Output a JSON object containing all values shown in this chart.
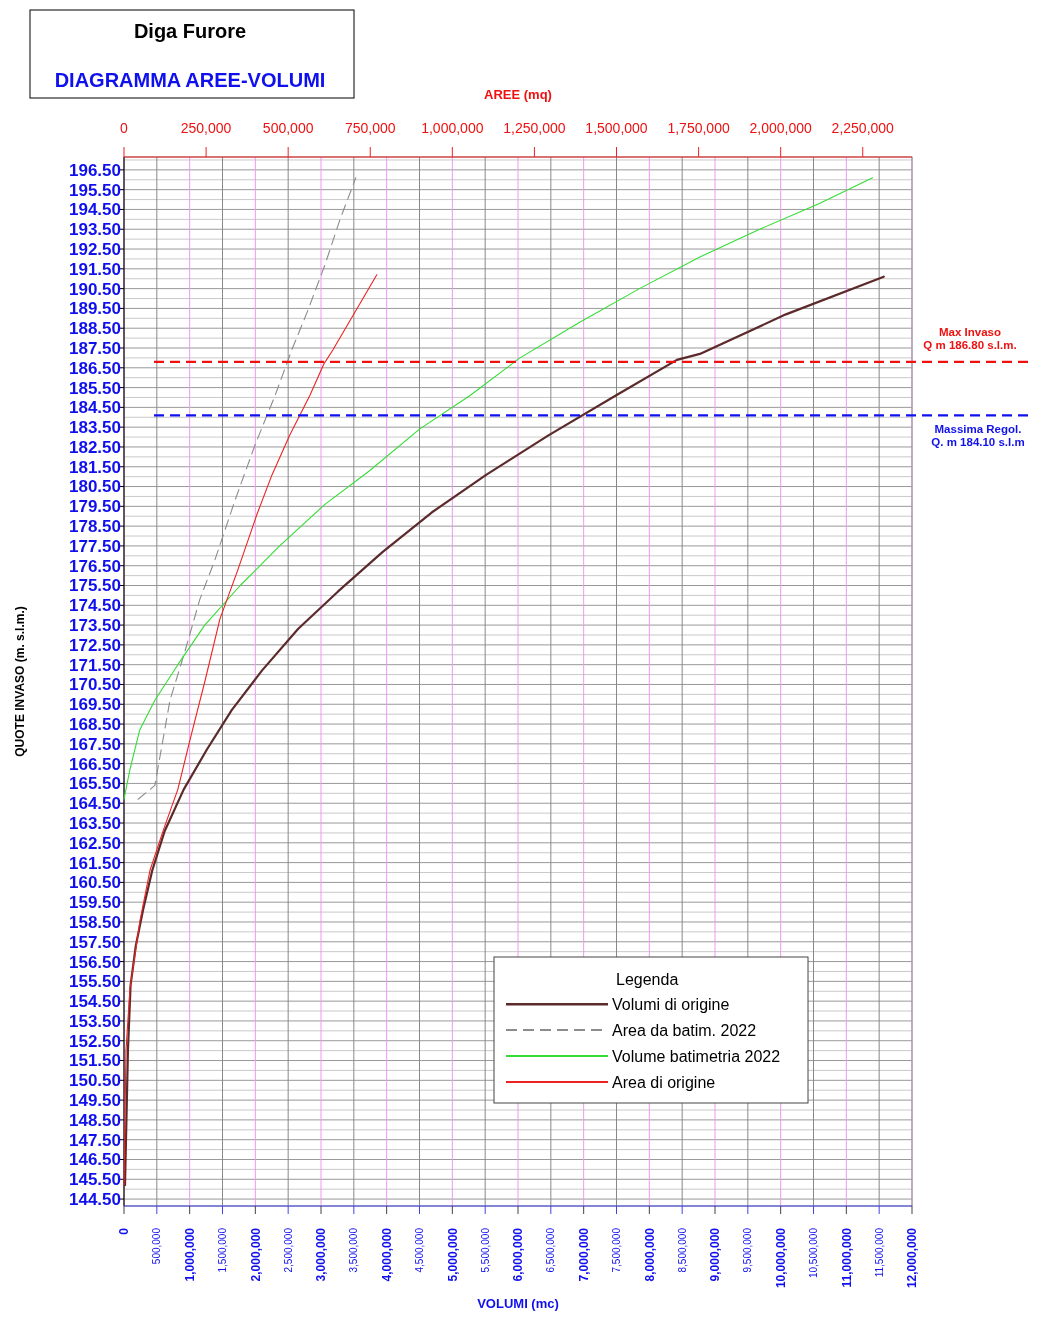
{
  "chart_data": {
    "type": "line",
    "title": "Diga Furore",
    "subtitle": "DIAGRAMMA AREE-VOLUMI",
    "xlabel": "VOLUMI (mc)",
    "x2label": "AREE (mq)",
    "ylabel": "QUOTE INVASO (m. s.l.m.)",
    "legend_title": "Legenda",
    "legend": "bottom right",
    "grid": true,
    "xlim": [
      0,
      12000000
    ],
    "x2lim": [
      0,
      2400000
    ],
    "ylim": [
      144.15,
      197.15
    ],
    "xticks": [
      0,
      {
        "value": 500000,
        "label": "500,000"
      },
      {
        "value": 1000000,
        "label": "1,000,000"
      },
      {
        "value": 1500000,
        "label": "1,500,000"
      },
      {
        "value": 2000000,
        "label": "2,000,000"
      },
      {
        "value": 2500000,
        "label": "2,500,000"
      },
      {
        "value": 3000000,
        "label": "3,000,000"
      },
      {
        "value": 3500000,
        "label": "3,500,000"
      },
      {
        "value": 4000000,
        "label": "4,000,000"
      },
      {
        "value": 4500000,
        "label": "4,500,000"
      },
      {
        "value": 5000000,
        "label": "5,000,000"
      },
      {
        "value": 5500000,
        "label": "5,500,000"
      },
      {
        "value": 6000000,
        "label": "6,000,000"
      },
      {
        "value": 6500000,
        "label": "6,500,000"
      },
      {
        "value": 7000000,
        "label": "7,000,000"
      },
      {
        "value": 7500000,
        "label": "7,500,000"
      },
      {
        "value": 8000000,
        "label": "8,000,000"
      },
      {
        "value": 8500000,
        "label": "8,500,000"
      },
      {
        "value": 9000000,
        "label": "9,000,000"
      },
      {
        "value": 9500000,
        "label": "9,500,000"
      },
      {
        "value": 10000000,
        "label": "10,000,000"
      },
      {
        "value": 10500000,
        "label": "10,500,000"
      },
      {
        "value": 11000000,
        "label": "11,000,000"
      },
      {
        "value": 11500000,
        "label": "11,500,000"
      },
      {
        "value": 12000000,
        "label": "12,000,000"
      }
    ],
    "x2ticks": [
      0,
      {
        "value": 250000,
        "label": "250,000"
      },
      {
        "value": 500000,
        "label": "500,000"
      },
      {
        "value": 750000,
        "label": "750,000"
      },
      {
        "value": 1000000,
        "label": "1,000,000"
      },
      {
        "value": 1250000,
        "label": "1,250,000"
      },
      {
        "value": 1500000,
        "label": "1,500,000"
      },
      {
        "value": 1750000,
        "label": "1,750,000"
      },
      {
        "value": 2000000,
        "label": "2,000,000"
      },
      {
        "value": 2250000,
        "label": "2,250,000"
      }
    ],
    "yticks": [
      {
        "value": 144.5,
        "label": "144.50"
      },
      {
        "value": 145.5,
        "label": "145.50"
      },
      {
        "value": 146.5,
        "label": "146.50"
      },
      {
        "value": 147.5,
        "label": "147.50"
      },
      {
        "value": 148.5,
        "label": "148.50"
      },
      {
        "value": 149.5,
        "label": "149.50"
      },
      {
        "value": 150.5,
        "label": "150.50"
      },
      {
        "value": 151.5,
        "label": "151.50"
      },
      {
        "value": 152.5,
        "label": "152.50"
      },
      {
        "value": 153.5,
        "label": "153.50"
      },
      {
        "value": 154.5,
        "label": "154.50"
      },
      {
        "value": 155.5,
        "label": "155.50"
      },
      {
        "value": 156.5,
        "label": "156.50"
      },
      {
        "value": 157.5,
        "label": "157.50"
      },
      {
        "value": 158.5,
        "label": "158.50"
      },
      {
        "value": 159.5,
        "label": "159.50"
      },
      {
        "value": 160.5,
        "label": "160.50"
      },
      {
        "value": 161.5,
        "label": "161.50"
      },
      {
        "value": 162.5,
        "label": "162.50"
      },
      {
        "value": 163.5,
        "label": "163.50"
      },
      {
        "value": 164.5,
        "label": "164.50"
      },
      {
        "value": 165.5,
        "label": "165.50"
      },
      {
        "value": 166.5,
        "label": "166.50"
      },
      {
        "value": 167.5,
        "label": "167.50"
      },
      {
        "value": 168.5,
        "label": "168.50"
      },
      {
        "value": 169.5,
        "label": "169.50"
      },
      {
        "value": 170.5,
        "label": "170.50"
      },
      {
        "value": 171.5,
        "label": "171.50"
      },
      {
        "value": 172.5,
        "label": "172.50"
      },
      {
        "value": 173.5,
        "label": "173.50"
      },
      {
        "value": 174.5,
        "label": "174.50"
      },
      {
        "value": 175.5,
        "label": "175.50"
      },
      {
        "value": 176.5,
        "label": "176.50"
      },
      {
        "value": 177.5,
        "label": "177.50"
      },
      {
        "value": 178.5,
        "label": "178.50"
      },
      {
        "value": 179.5,
        "label": "179.50"
      },
      {
        "value": 180.5,
        "label": "180.50"
      },
      {
        "value": 181.5,
        "label": "181.50"
      },
      {
        "value": 182.5,
        "label": "182.50"
      },
      {
        "value": 183.5,
        "label": "183.50"
      },
      {
        "value": 184.5,
        "label": "184.50"
      },
      {
        "value": 185.5,
        "label": "185.50"
      },
      {
        "value": 186.5,
        "label": "186.50"
      },
      {
        "value": 187.5,
        "label": "187.50"
      },
      {
        "value": 188.5,
        "label": "188.50"
      },
      {
        "value": 189.5,
        "label": "189.50"
      },
      {
        "value": 190.5,
        "label": "190.50"
      },
      {
        "value": 191.5,
        "label": "191.50"
      },
      {
        "value": 192.5,
        "label": "192.50"
      },
      {
        "value": 193.5,
        "label": "193.50"
      },
      {
        "value": 194.5,
        "label": "194.50"
      },
      {
        "value": 195.5,
        "label": "195.50"
      },
      {
        "value": 196.5,
        "label": "196.50"
      }
    ],
    "series": [
      {
        "name": "Volumi di origine",
        "color": "#5c2a2a",
        "x": [
          15000,
          60000,
          100000,
          180000,
          290000,
          430000,
          620000,
          910000,
          1260000,
          1640000,
          2100000,
          2650000,
          3260000,
          3940000,
          4690000,
          5520000,
          6470000,
          7490000,
          8420000,
          8770000,
          10080000,
          11570000
        ],
        "values": [
          145.2,
          152.0,
          155.3,
          157.3,
          159.1,
          161.1,
          163.1,
          165.2,
          167.2,
          169.2,
          171.2,
          173.3,
          175.2,
          177.2,
          179.2,
          181.1,
          183.1,
          185.1,
          186.9,
          187.2,
          189.2,
          191.1
        ]
      },
      {
        "name": "Area da batim. 2022",
        "color": "#8c8c8c",
        "line_style": "dashed",
        "axis": "x2",
        "x": [
          43000,
          94000,
          110000,
          140000,
          186000,
          231000,
          277000,
          338000,
          399000,
          460000,
          511000,
          560000,
          612000,
          658000,
          706000
        ],
        "values": [
          164.7,
          165.4,
          166.9,
          169.7,
          172.2,
          174.8,
          176.8,
          179.8,
          182.6,
          185.1,
          187.4,
          189.4,
          191.7,
          194.0,
          196.1
        ]
      },
      {
        "name": "Volume batimetria 2022",
        "color": "#33dd33",
        "x": [
          0,
          90000,
          240000,
          470000,
          820000,
          1230000,
          1770000,
          2370000,
          3060000,
          3740000,
          4500000,
          5270000,
          6030000,
          6940000,
          7850000,
          8770000,
          9680000,
          10590000,
          11400000
        ],
        "values": [
          164.7,
          166.2,
          168.2,
          169.7,
          171.5,
          173.5,
          175.5,
          177.5,
          179.6,
          181.3,
          183.4,
          185.1,
          187.0,
          188.8,
          190.5,
          192.1,
          193.5,
          194.8,
          196.1
        ]
      },
      {
        "name": "Area di origine",
        "color": "#ee2222",
        "axis": "x2",
        "x": [
          0,
          6000,
          18000,
          49000,
          79000,
          119000,
          164000,
          201000,
          247000,
          292000,
          347000,
          405000,
          451000,
          505000,
          566000,
          609000,
          636000,
          770000
        ],
        "values": [
          145.2,
          152.0,
          155.1,
          158.6,
          161.1,
          163.1,
          165.2,
          167.7,
          170.7,
          173.8,
          176.3,
          179.1,
          181.1,
          183.1,
          185.1,
          186.7,
          187.4,
          191.2
        ]
      }
    ],
    "ref_lines": [
      {
        "axis": "y",
        "value": 186.8,
        "label": "Max Invaso\nQ m 186.80 s.l.m.",
        "color": "#ee1111",
        "line_style": "dashed"
      },
      {
        "axis": "y",
        "value": 184.1,
        "label": "Massima Regol.\nQ. m 184.10 s.l.m",
        "color": "#1111ee",
        "line_style": "dashed"
      }
    ]
  }
}
